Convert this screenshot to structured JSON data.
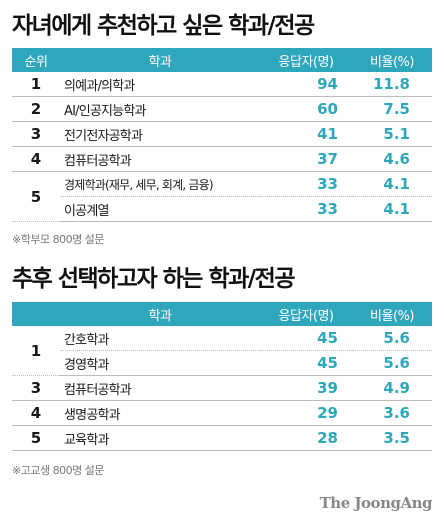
{
  "chart_data": [
    {
      "type": "table",
      "title": "자녀에게 추천하고 싶은 학과/전공",
      "columns": [
        "순위",
        "학과",
        "응답자(명)",
        "비율(%)"
      ],
      "rows": [
        {
          "rank": "1",
          "major": "의예과/의학과",
          "count": 94,
          "pct": "11.8"
        },
        {
          "rank": "2",
          "major": "AI/인공지능학과",
          "count": 60,
          "pct": "7.5"
        },
        {
          "rank": "3",
          "major": "전기전자공학과",
          "count": 41,
          "pct": "5.1"
        },
        {
          "rank": "4",
          "major": "컴퓨터공학과",
          "count": 37,
          "pct": "4.6"
        },
        {
          "rank": "5",
          "major": "경제학과(재무, 세무, 회계, 금융)",
          "count": 33,
          "pct": "4.1"
        },
        {
          "rank": "5",
          "major": "이공계열",
          "count": 33,
          "pct": "4.1"
        }
      ],
      "note": "※학부모 800명 설문"
    },
    {
      "type": "table",
      "title": "추후 선택하고자 하는 학과/전공",
      "columns": [
        "",
        "학과",
        "응답자(명)",
        "비율(%)"
      ],
      "rows": [
        {
          "rank": "1",
          "major": "간호학과",
          "count": 45,
          "pct": "5.6"
        },
        {
          "rank": "1",
          "major": "경영학과",
          "count": 45,
          "pct": "5.6"
        },
        {
          "rank": "3",
          "major": "컴퓨터공학과",
          "count": 39,
          "pct": "4.9"
        },
        {
          "rank": "4",
          "major": "생명공학과",
          "count": 29,
          "pct": "3.6"
        },
        {
          "rank": "5",
          "major": "교육학과",
          "count": 28,
          "pct": "3.5"
        }
      ],
      "note": "※고교생 800명 설문"
    }
  ],
  "credit": "The JoongAng",
  "colors": {
    "accent": "#2ea7bd",
    "divider": "#bdbdbd",
    "note": "#777777"
  }
}
